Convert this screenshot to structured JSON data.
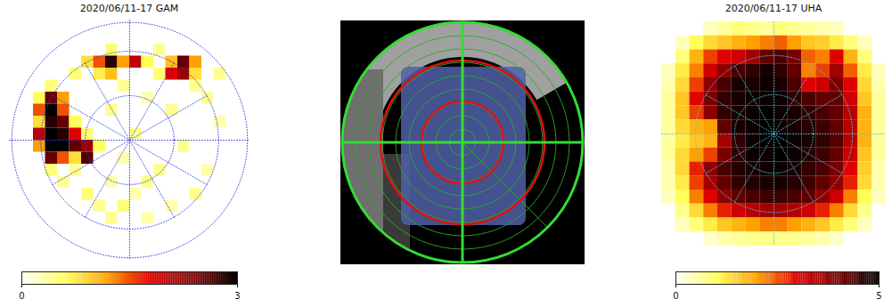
{
  "chart_data": [
    {
      "type": "heatmap",
      "title": "2020/06/11-17 GAM",
      "z": [
        [
          null,
          null,
          null,
          null,
          null,
          null,
          null,
          null,
          null,
          null,
          null,
          null,
          null,
          null,
          null,
          null,
          null,
          null,
          null,
          null
        ],
        [
          null,
          null,
          null,
          null,
          null,
          null,
          null,
          null,
          null,
          null,
          null,
          null,
          null,
          null,
          null,
          null,
          null,
          null,
          null,
          null
        ],
        [
          null,
          null,
          null,
          null,
          null,
          null,
          null,
          null,
          0.5,
          null,
          null,
          null,
          0.4,
          null,
          null,
          null,
          null,
          null,
          null,
          null
        ],
        [
          null,
          null,
          null,
          null,
          null,
          null,
          0.8,
          1.5,
          2.8,
          1.2,
          2.0,
          0.6,
          null,
          1.0,
          2.5,
          1.2,
          null,
          null,
          null,
          null
        ],
        [
          null,
          null,
          null,
          null,
          null,
          0.5,
          null,
          0.7,
          1.0,
          null,
          null,
          null,
          0.5,
          1.8,
          2.2,
          0.8,
          null,
          0.4,
          null,
          null
        ],
        [
          null,
          null,
          null,
          0.5,
          null,
          null,
          null,
          null,
          null,
          0.4,
          null,
          null,
          null,
          null,
          null,
          0.4,
          null,
          null,
          null,
          null
        ],
        [
          null,
          null,
          0.6,
          2.5,
          1.2,
          null,
          null,
          null,
          null,
          null,
          null,
          0.3,
          null,
          null,
          null,
          null,
          0.4,
          null,
          null,
          null
        ],
        [
          null,
          null,
          1.5,
          3.0,
          1.5,
          null,
          null,
          null,
          0.4,
          null,
          null,
          null,
          null,
          0.4,
          null,
          null,
          null,
          null,
          null,
          null
        ],
        [
          null,
          null,
          0.8,
          2.8,
          2.5,
          0.6,
          null,
          null,
          null,
          null,
          null,
          null,
          null,
          null,
          null,
          null,
          null,
          0.3,
          null,
          null
        ],
        [
          null,
          null,
          2.0,
          3.0,
          2.8,
          1.8,
          0.5,
          null,
          null,
          null,
          0.4,
          null,
          null,
          null,
          null,
          null,
          null,
          null,
          null,
          null
        ],
        [
          null,
          null,
          1.2,
          3.0,
          3.0,
          2.5,
          2.2,
          0.6,
          null,
          null,
          null,
          null,
          null,
          null,
          0.4,
          null,
          null,
          null,
          null,
          null
        ],
        [
          null,
          null,
          null,
          2.5,
          1.5,
          0.8,
          2.6,
          null,
          null,
          0.3,
          null,
          null,
          null,
          null,
          null,
          null,
          null,
          null,
          null,
          null
        ],
        [
          null,
          null,
          null,
          0.5,
          null,
          0.4,
          null,
          null,
          null,
          null,
          null,
          null,
          0.4,
          null,
          null,
          null,
          0.3,
          null,
          null,
          null
        ],
        [
          null,
          null,
          null,
          null,
          0.4,
          null,
          null,
          null,
          0.3,
          null,
          null,
          0.4,
          null,
          null,
          null,
          null,
          null,
          null,
          null,
          null
        ],
        [
          null,
          null,
          null,
          null,
          null,
          null,
          0.5,
          null,
          null,
          null,
          0.3,
          null,
          null,
          null,
          null,
          0.4,
          null,
          null,
          null,
          null
        ],
        [
          null,
          null,
          null,
          null,
          null,
          null,
          null,
          0.4,
          null,
          0.5,
          null,
          null,
          null,
          0.3,
          null,
          null,
          null,
          null,
          null,
          null
        ],
        [
          null,
          null,
          null,
          null,
          null,
          null,
          null,
          null,
          0.4,
          null,
          null,
          0.3,
          null,
          null,
          null,
          null,
          null,
          null,
          null,
          null
        ],
        [
          null,
          null,
          null,
          null,
          null,
          null,
          null,
          null,
          null,
          null,
          null,
          null,
          null,
          null,
          null,
          null,
          null,
          null,
          null,
          null
        ],
        [
          null,
          null,
          null,
          null,
          null,
          null,
          null,
          null,
          null,
          null,
          null,
          null,
          null,
          null,
          null,
          null,
          null,
          null,
          null,
          null
        ],
        [
          null,
          null,
          null,
          null,
          null,
          null,
          null,
          null,
          null,
          null,
          null,
          null,
          null,
          null,
          null,
          null,
          null,
          null,
          null,
          null
        ]
      ],
      "colorbar": {
        "range": [
          0,
          3
        ],
        "ticks": [
          0,
          3
        ]
      }
    },
    {
      "type": "image"
    },
    {
      "type": "heatmap",
      "title": "2020/06/11-17 UHA",
      "z": [
        [
          null,
          null,
          null,
          0.4,
          0.6,
          0.8,
          0.7,
          0.6,
          0.8,
          0.7,
          0.6,
          0.5,
          0.4,
          null,
          null,
          null
        ],
        [
          null,
          0.4,
          1.0,
          1.4,
          1.6,
          1.8,
          2.0,
          2.2,
          2.4,
          2.0,
          1.6,
          1.5,
          1.2,
          0.8,
          0.4,
          null
        ],
        [
          null,
          0.8,
          1.8,
          2.6,
          3.0,
          3.2,
          3.6,
          4.2,
          4.4,
          4.0,
          2.4,
          2.2,
          3.0,
          1.8,
          0.8,
          null
        ],
        [
          0.4,
          1.2,
          2.2,
          3.2,
          3.8,
          4.4,
          4.6,
          4.8,
          4.6,
          4.2,
          2.2,
          2.6,
          3.6,
          2.4,
          1.2,
          0.4
        ],
        [
          0.5,
          1.4,
          2.6,
          3.8,
          4.4,
          4.8,
          4.8,
          4.9,
          4.8,
          4.4,
          3.0,
          3.2,
          4.0,
          3.0,
          1.4,
          0.5
        ],
        [
          0.6,
          1.6,
          3.0,
          4.0,
          4.6,
          4.8,
          4.9,
          4.9,
          4.9,
          4.6,
          4.4,
          4.2,
          4.2,
          3.2,
          1.6,
          0.6
        ],
        [
          0.6,
          1.6,
          2.6,
          3.8,
          4.6,
          4.8,
          4.9,
          5.0,
          4.9,
          4.8,
          4.6,
          4.4,
          4.2,
          3.4,
          1.8,
          0.6
        ],
        [
          0.6,
          1.4,
          1.8,
          2.0,
          4.2,
          4.8,
          4.9,
          5.0,
          4.9,
          4.8,
          4.7,
          4.5,
          4.2,
          3.4,
          1.8,
          0.6
        ],
        [
          0.6,
          1.2,
          1.6,
          1.8,
          3.6,
          4.6,
          4.9,
          5.0,
          5.0,
          4.9,
          4.8,
          4.6,
          4.3,
          3.4,
          1.8,
          0.6
        ],
        [
          0.6,
          1.4,
          2.0,
          2.6,
          4.0,
          4.6,
          4.9,
          4.9,
          5.0,
          4.9,
          4.7,
          4.5,
          4.2,
          3.2,
          1.6,
          0.6
        ],
        [
          0.5,
          1.4,
          2.8,
          3.8,
          4.4,
          4.7,
          4.8,
          4.9,
          4.9,
          4.8,
          4.6,
          4.4,
          4.0,
          3.0,
          1.5,
          0.5
        ],
        [
          0.5,
          1.2,
          2.6,
          3.6,
          4.2,
          4.6,
          4.7,
          4.8,
          4.8,
          4.7,
          4.5,
          4.2,
          3.8,
          2.8,
          1.4,
          0.5
        ],
        [
          0.4,
          1.0,
          2.2,
          3.0,
          3.8,
          4.2,
          4.4,
          4.5,
          4.5,
          4.4,
          4.2,
          3.8,
          3.2,
          2.2,
          1.0,
          0.4
        ],
        [
          null,
          0.7,
          1.4,
          2.2,
          2.8,
          3.2,
          3.4,
          3.6,
          3.6,
          3.4,
          3.2,
          2.8,
          2.2,
          1.4,
          0.7,
          null
        ],
        [
          null,
          0.4,
          0.8,
          1.2,
          1.6,
          1.8,
          2.0,
          2.2,
          2.2,
          2.0,
          1.8,
          1.6,
          1.2,
          0.8,
          0.4,
          null
        ],
        [
          null,
          null,
          null,
          0.3,
          0.5,
          0.6,
          0.7,
          0.7,
          0.7,
          0.7,
          0.6,
          0.5,
          0.3,
          null,
          null,
          null
        ]
      ],
      "colorbar": {
        "range": [
          0,
          5
        ],
        "ticks": [
          0,
          5
        ]
      }
    }
  ]
}
